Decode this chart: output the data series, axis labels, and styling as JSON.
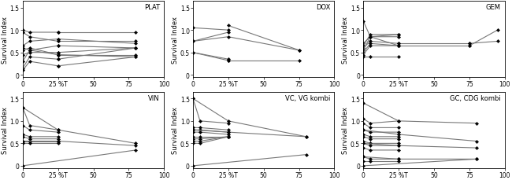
{
  "subplots": [
    {
      "title": "PLAT",
      "lines": [
        [
          [
            0,
            5,
            25
          ],
          [
            1.0,
            0.95,
            0.95
          ]
        ],
        [
          [
            0,
            5,
            25
          ],
          [
            0.95,
            0.85,
            0.75
          ]
        ],
        [
          [
            0,
            5,
            25
          ],
          [
            0.65,
            0.75,
            0.8
          ]
        ],
        [
          [
            0,
            5,
            25
          ],
          [
            0.6,
            0.55,
            0.65
          ]
        ],
        [
          [
            0,
            5,
            25
          ],
          [
            0.55,
            0.6,
            0.45
          ]
        ],
        [
          [
            0,
            5,
            25
          ],
          [
            0.45,
            0.5,
            0.5
          ]
        ],
        [
          [
            0,
            5,
            25
          ],
          [
            0.3,
            0.55,
            0.45
          ]
        ],
        [
          [
            0,
            5,
            25
          ],
          [
            0.15,
            0.4,
            0.35
          ]
        ],
        [
          [
            0,
            5,
            25
          ],
          [
            0.1,
            0.3,
            0.2
          ]
        ],
        [
          [
            25,
            80
          ],
          [
            0.95,
            0.95
          ]
        ],
        [
          [
            25,
            80
          ],
          [
            0.75,
            0.75
          ]
        ],
        [
          [
            25,
            80
          ],
          [
            0.65,
            0.6
          ]
        ],
        [
          [
            25,
            80
          ],
          [
            0.8,
            0.7
          ]
        ],
        [
          [
            25,
            80
          ],
          [
            0.45,
            0.4
          ]
        ],
        [
          [
            25,
            80
          ],
          [
            0.5,
            0.6
          ]
        ],
        [
          [
            25,
            80
          ],
          [
            0.45,
            0.45
          ]
        ],
        [
          [
            25,
            80
          ],
          [
            0.35,
            0.6
          ]
        ],
        [
          [
            25,
            80
          ],
          [
            0.2,
            0.4
          ]
        ]
      ]
    },
    {
      "title": "DOX",
      "lines": [
        [
          [
            0,
            25
          ],
          [
            1.05,
            1.0
          ]
        ],
        [
          [
            0,
            25
          ],
          [
            0.75,
            0.95
          ]
        ],
        [
          [
            0,
            25,
            75
          ],
          [
            0.75,
            0.85,
            0.55
          ]
        ],
        [
          [
            0,
            25
          ],
          [
            0.5,
            0.32
          ]
        ],
        [
          [
            0,
            25
          ],
          [
            0.5,
            0.35
          ]
        ],
        [
          [
            25,
            75
          ],
          [
            1.1,
            0.55
          ]
        ],
        [
          [
            25,
            75
          ],
          [
            0.32,
            0.32
          ]
        ]
      ]
    },
    {
      "title": "GEM",
      "lines": [
        [
          [
            0,
            5,
            25
          ],
          [
            1.2,
            0.85,
            0.9
          ]
        ],
        [
          [
            0,
            5,
            25
          ],
          [
            0.7,
            0.85,
            0.85
          ]
        ],
        [
          [
            0,
            5,
            25
          ],
          [
            0.65,
            0.9,
            0.9
          ]
        ],
        [
          [
            0,
            5,
            25
          ],
          [
            0.6,
            0.75,
            0.7
          ]
        ],
        [
          [
            0,
            5,
            25
          ],
          [
            0.55,
            0.85,
            0.65
          ]
        ],
        [
          [
            0,
            5,
            25
          ],
          [
            0.5,
            0.7,
            0.65
          ]
        ],
        [
          [
            0,
            5,
            25
          ],
          [
            0.45,
            0.65,
            0.65
          ]
        ],
        [
          [
            0,
            5,
            25
          ],
          [
            0.4,
            0.4,
            0.4
          ]
        ],
        [
          [
            25,
            75
          ],
          [
            0.65,
            0.65
          ]
        ],
        [
          [
            25,
            75
          ],
          [
            0.7,
            0.7
          ]
        ],
        [
          [
            75,
            95
          ],
          [
            0.65,
            1.0
          ]
        ],
        [
          [
            75,
            95
          ],
          [
            0.7,
            0.75
          ]
        ]
      ]
    },
    {
      "title": "VIN",
      "lines": [
        [
          [
            0,
            5,
            25
          ],
          [
            1.3,
            0.9,
            0.8
          ]
        ],
        [
          [
            0,
            5,
            25
          ],
          [
            0.9,
            0.8,
            0.75
          ]
        ],
        [
          [
            0,
            5,
            25
          ],
          [
            0.7,
            0.65,
            0.65
          ]
        ],
        [
          [
            0,
            5,
            25
          ],
          [
            0.65,
            0.6,
            0.6
          ]
        ],
        [
          [
            0,
            5,
            25
          ],
          [
            0.55,
            0.55,
            0.55
          ]
        ],
        [
          [
            0,
            5,
            25
          ],
          [
            0.5,
            0.5,
            0.5
          ]
        ],
        [
          [
            0,
            25,
            80
          ],
          [
            1.3,
            0.8,
            0.5
          ]
        ],
        [
          [
            0,
            25,
            80
          ],
          [
            0.55,
            0.55,
            0.45
          ]
        ],
        [
          [
            0,
            80
          ],
          [
            0.0,
            0.35
          ]
        ]
      ]
    },
    {
      "title": "VC, VG kombi",
      "lines": [
        [
          [
            0,
            5,
            25
          ],
          [
            1.5,
            1.0,
            0.95
          ]
        ],
        [
          [
            0,
            5,
            25
          ],
          [
            0.85,
            0.85,
            0.8
          ]
        ],
        [
          [
            0,
            5,
            25
          ],
          [
            0.8,
            0.8,
            0.75
          ]
        ],
        [
          [
            0,
            5,
            25
          ],
          [
            0.75,
            0.75,
            0.7
          ]
        ],
        [
          [
            0,
            5,
            25
          ],
          [
            0.65,
            0.65,
            0.65
          ]
        ],
        [
          [
            0,
            5,
            25
          ],
          [
            0.6,
            0.6,
            0.65
          ]
        ],
        [
          [
            0,
            5,
            25
          ],
          [
            0.55,
            0.55,
            0.65
          ]
        ],
        [
          [
            0,
            5,
            25
          ],
          [
            0.5,
            0.5,
            0.65
          ]
        ],
        [
          [
            0,
            25,
            80
          ],
          [
            1.5,
            1.0,
            0.65
          ]
        ],
        [
          [
            0,
            25,
            80
          ],
          [
            0.8,
            0.75,
            0.65
          ]
        ],
        [
          [
            0,
            80
          ],
          [
            0.0,
            0.25
          ]
        ]
      ]
    },
    {
      "title": "GC, CDG kombi",
      "lines": [
        [
          [
            0,
            5,
            25
          ],
          [
            1.05,
            0.95,
            1.0
          ]
        ],
        [
          [
            0,
            5,
            25
          ],
          [
            0.95,
            0.85,
            0.85
          ]
        ],
        [
          [
            0,
            5,
            25
          ],
          [
            0.8,
            0.75,
            0.75
          ]
        ],
        [
          [
            0,
            5,
            25
          ],
          [
            0.7,
            0.65,
            0.65
          ]
        ],
        [
          [
            0,
            5,
            25
          ],
          [
            0.65,
            0.6,
            0.6
          ]
        ],
        [
          [
            0,
            5,
            25
          ],
          [
            0.55,
            0.5,
            0.5
          ]
        ],
        [
          [
            0,
            5,
            25
          ],
          [
            0.5,
            0.45,
            0.45
          ]
        ],
        [
          [
            0,
            5,
            25
          ],
          [
            0.4,
            0.35,
            0.35
          ]
        ],
        [
          [
            0,
            5,
            25
          ],
          [
            0.2,
            0.15,
            0.15
          ]
        ],
        [
          [
            0,
            5,
            25
          ],
          [
            0.1,
            0.1,
            0.1
          ]
        ],
        [
          [
            0,
            25,
            80
          ],
          [
            1.4,
            1.0,
            0.95
          ]
        ],
        [
          [
            0,
            25,
            80
          ],
          [
            0.8,
            0.7,
            0.55
          ]
        ],
        [
          [
            0,
            25,
            80
          ],
          [
            0.5,
            0.45,
            0.4
          ]
        ],
        [
          [
            0,
            25,
            80
          ],
          [
            0.2,
            0.15,
            0.15
          ]
        ],
        [
          [
            0,
            80
          ],
          [
            0.0,
            0.15
          ]
        ]
      ]
    }
  ],
  "xlim": [
    0,
    100
  ],
  "ylim": [
    -0.05,
    1.65
  ],
  "yticks": [
    0,
    0.5,
    1.0,
    1.5
  ],
  "xticks": [
    0,
    25,
    50,
    75,
    100
  ],
  "xticklabels": [
    "0",
    "25",
    "50",
    "75",
    "100"
  ],
  "yticklabels": [
    "0",
    "0.5",
    "1.0",
    "1.5"
  ],
  "ylabel": "Survival Index",
  "line_color": "#777777",
  "marker": "D",
  "markersize": 2.2,
  "linewidth": 0.8
}
